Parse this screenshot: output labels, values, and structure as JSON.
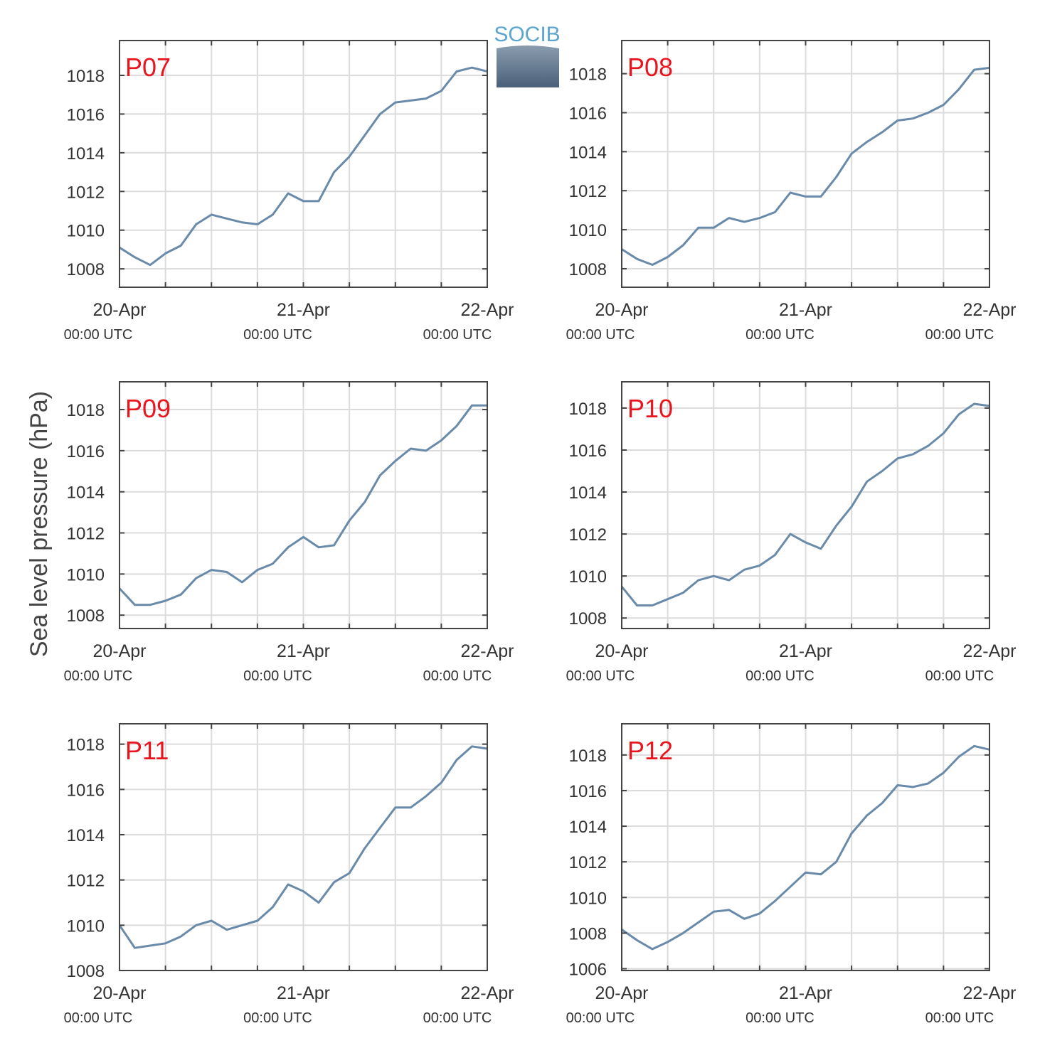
{
  "ylabel": "Sea level pressure (hPa)",
  "logo": "SOCIB",
  "chart_data": [
    {
      "type": "line",
      "title": "P07",
      "x": [
        0,
        2,
        4,
        6,
        8,
        10,
        12,
        14,
        16,
        18,
        20,
        22,
        24,
        26,
        28,
        30,
        32,
        34,
        36,
        38,
        40,
        42,
        44,
        46,
        48
      ],
      "series": [
        {
          "color": "#6a8aaa",
          "values": [
            1009.1,
            1008.6,
            1008.2,
            1008.8,
            1009.2,
            1010.3,
            1010.8,
            1010.6,
            1010.4,
            1010.3,
            1010.8,
            1011.9,
            1011.5,
            1011.5,
            1013.0,
            1013.8,
            1014.9,
            1016.0,
            1016.6,
            1016.7,
            1016.8,
            1017.2,
            1018.2,
            1018.4,
            1018.2
          ]
        }
      ],
      "xlim": [
        0,
        48
      ],
      "xticks": [
        {
          "value": 0,
          "label": "20-Apr",
          "sublabel": "00:00 UTC"
        },
        {
          "value": 24,
          "label": "21-Apr",
          "sublabel": "00:00 UTC"
        },
        {
          "value": 48,
          "label": "22-Apr",
          "sublabel": "00:00 UTC"
        }
      ],
      "xminorticks": [
        6,
        12,
        18,
        30,
        36,
        42
      ],
      "ylim": [
        1007.05,
        1019.8
      ],
      "yticks": [
        1008,
        1010,
        1012,
        1014,
        1016,
        1018
      ],
      "grid": true
    },
    {
      "type": "line",
      "title": "P08",
      "x": [
        0,
        2,
        4,
        6,
        8,
        10,
        12,
        14,
        16,
        18,
        20,
        22,
        24,
        26,
        28,
        30,
        32,
        34,
        36,
        38,
        40,
        42,
        44,
        46,
        48
      ],
      "series": [
        {
          "color": "#6a8aaa",
          "values": [
            1009.0,
            1008.5,
            1008.2,
            1008.6,
            1009.2,
            1010.1,
            1010.1,
            1010.6,
            1010.4,
            1010.6,
            1010.9,
            1011.9,
            1011.7,
            1011.7,
            1012.7,
            1013.9,
            1014.5,
            1015.0,
            1015.6,
            1015.7,
            1016.0,
            1016.4,
            1017.2,
            1018.2,
            1018.3
          ]
        }
      ],
      "xlim": [
        0,
        48
      ],
      "xticks": [
        {
          "value": 0,
          "label": "20-Apr",
          "sublabel": "00:00 UTC"
        },
        {
          "value": 24,
          "label": "21-Apr",
          "sublabel": "00:00 UTC"
        },
        {
          "value": 48,
          "label": "22-Apr",
          "sublabel": "00:00 UTC"
        }
      ],
      "xminorticks": [
        6,
        12,
        18,
        30,
        36,
        42
      ],
      "ylim": [
        1007.05,
        1019.7
      ],
      "yticks": [
        1008,
        1010,
        1012,
        1014,
        1016,
        1018
      ],
      "grid": true
    },
    {
      "type": "line",
      "title": "P09",
      "x": [
        0,
        2,
        4,
        6,
        8,
        10,
        12,
        14,
        16,
        18,
        20,
        22,
        24,
        26,
        28,
        30,
        32,
        34,
        36,
        38,
        40,
        42,
        44,
        46,
        48
      ],
      "series": [
        {
          "color": "#6a8aaa",
          "values": [
            1009.3,
            1008.5,
            1008.5,
            1008.7,
            1009.0,
            1009.8,
            1010.2,
            1010.1,
            1009.6,
            1010.2,
            1010.5,
            1011.3,
            1011.8,
            1011.3,
            1011.4,
            1012.6,
            1013.5,
            1014.8,
            1015.5,
            1016.1,
            1016.0,
            1016.5,
            1017.2,
            1018.2,
            1018.2
          ]
        }
      ],
      "xlim": [
        0,
        48
      ],
      "xticks": [
        {
          "value": 0,
          "label": "20-Apr",
          "sublabel": "00:00 UTC"
        },
        {
          "value": 24,
          "label": "21-Apr",
          "sublabel": "00:00 UTC"
        },
        {
          "value": 48,
          "label": "22-Apr",
          "sublabel": "00:00 UTC"
        }
      ],
      "xminorticks": [
        6,
        12,
        18,
        30,
        36,
        42
      ],
      "ylim": [
        1007.35,
        1019.35
      ],
      "yticks": [
        1008,
        1010,
        1012,
        1014,
        1016,
        1018
      ],
      "grid": true
    },
    {
      "type": "line",
      "title": "P10",
      "x": [
        0,
        2,
        4,
        6,
        8,
        10,
        12,
        14,
        16,
        18,
        20,
        22,
        24,
        26,
        28,
        30,
        32,
        34,
        36,
        38,
        40,
        42,
        44,
        46,
        48
      ],
      "series": [
        {
          "color": "#6a8aaa",
          "values": [
            1009.5,
            1008.6,
            1008.6,
            1008.9,
            1009.2,
            1009.8,
            1010.0,
            1009.8,
            1010.3,
            1010.5,
            1011.0,
            1012.0,
            1011.6,
            1011.3,
            1012.4,
            1013.3,
            1014.5,
            1015.0,
            1015.6,
            1015.8,
            1016.2,
            1016.8,
            1017.7,
            1018.2,
            1018.1
          ]
        }
      ],
      "xlim": [
        0,
        48
      ],
      "xticks": [
        {
          "value": 0,
          "label": "20-Apr",
          "sublabel": "00:00 UTC"
        },
        {
          "value": 24,
          "label": "21-Apr",
          "sublabel": "00:00 UTC"
        },
        {
          "value": 48,
          "label": "22-Apr",
          "sublabel": "00:00 UTC"
        }
      ],
      "xminorticks": [
        6,
        12,
        18,
        30,
        36,
        42
      ],
      "ylim": [
        1007.5,
        1019.25
      ],
      "yticks": [
        1008,
        1010,
        1012,
        1014,
        1016,
        1018
      ],
      "grid": true
    },
    {
      "type": "line",
      "title": "P11",
      "x": [
        0,
        2,
        4,
        6,
        8,
        10,
        12,
        14,
        16,
        18,
        20,
        22,
        24,
        26,
        28,
        30,
        32,
        34,
        36,
        38,
        40,
        42,
        44,
        46,
        48
      ],
      "series": [
        {
          "color": "#6a8aaa",
          "values": [
            1010.0,
            1009.0,
            1009.1,
            1009.2,
            1009.5,
            1010.0,
            1010.2,
            1009.8,
            1010.0,
            1010.2,
            1010.8,
            1011.8,
            1011.5,
            1011.0,
            1011.9,
            1012.3,
            1013.4,
            1014.3,
            1015.2,
            1015.2,
            1015.7,
            1016.3,
            1017.3,
            1017.9,
            1017.8
          ]
        }
      ],
      "xlim": [
        0,
        48
      ],
      "xticks": [
        {
          "value": 0,
          "label": "20-Apr",
          "sublabel": "00:00 UTC"
        },
        {
          "value": 24,
          "label": "21-Apr",
          "sublabel": "00:00 UTC"
        },
        {
          "value": 48,
          "label": "22-Apr",
          "sublabel": "00:00 UTC"
        }
      ],
      "xminorticks": [
        6,
        12,
        18,
        30,
        36,
        42
      ],
      "ylim": [
        1008,
        1018.9
      ],
      "yticks": [
        1008,
        1010,
        1012,
        1014,
        1016,
        1018
      ],
      "grid": true
    },
    {
      "type": "line",
      "title": "P12",
      "x": [
        0,
        2,
        4,
        6,
        8,
        10,
        12,
        14,
        16,
        18,
        20,
        22,
        24,
        26,
        28,
        30,
        32,
        34,
        36,
        38,
        40,
        42,
        44,
        46,
        48
      ],
      "series": [
        {
          "color": "#6a8aaa",
          "values": [
            1008.2,
            1007.6,
            1007.1,
            1007.5,
            1008.0,
            1008.6,
            1009.2,
            1009.3,
            1008.8,
            1009.1,
            1009.8,
            1010.6,
            1011.4,
            1011.3,
            1012.0,
            1013.6,
            1014.6,
            1015.3,
            1016.3,
            1016.2,
            1016.4,
            1017.0,
            1017.9,
            1018.5,
            1018.3
          ]
        }
      ],
      "xlim": [
        0,
        48
      ],
      "xticks": [
        {
          "value": 0,
          "label": "20-Apr",
          "sublabel": "00:00 UTC"
        },
        {
          "value": 24,
          "label": "21-Apr",
          "sublabel": "00:00 UTC"
        },
        {
          "value": 48,
          "label": "22-Apr",
          "sublabel": "00:00 UTC"
        }
      ],
      "xminorticks": [
        6,
        12,
        18,
        30,
        36,
        42
      ],
      "ylim": [
        1005.9,
        1019.75
      ],
      "yticks": [
        1006,
        1008,
        1010,
        1012,
        1014,
        1016,
        1018
      ],
      "grid": true
    }
  ]
}
